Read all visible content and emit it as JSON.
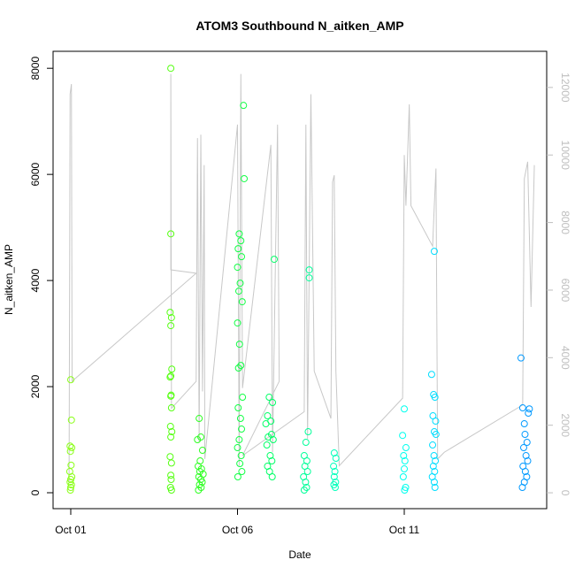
{
  "chart_data": {
    "type": "scatter",
    "title": "ATOM3 Southbound N_aitken_AMP",
    "x_label": "Date",
    "y_label": "N_aitken_AMP",
    "xlim": [
      0.47,
      15.27
    ],
    "xticks": [
      {
        "value": 1,
        "label": "Oct 01"
      },
      {
        "value": 6,
        "label": "Oct 06"
      },
      {
        "value": 11,
        "label": "Oct 11"
      }
    ],
    "ylim": [
      -300,
      8320
    ],
    "yticks": [
      0,
      2000,
      4000,
      6000,
      8000
    ],
    "y2lim": [
      -470,
      13070
    ],
    "y2ticks": [
      0,
      2000,
      4000,
      6000,
      8000,
      10000,
      12000
    ],
    "y2_color": "#bebebe",
    "series": [
      {
        "type": "line",
        "axis": "y2",
        "color": "#c8c8c8",
        "x": [
          0.95,
          0.98,
          1.02,
          1.04,
          4.76,
          4.0,
          4.0,
          4.02,
          4.76,
          4.8,
          4.85,
          4.9,
          4.95,
          5.0,
          5.02,
          6.0,
          6.05,
          6.1,
          6.15,
          7.0,
          7.05,
          7.2,
          7.25,
          6.15,
          8.0,
          8.05,
          8.1,
          8.2,
          8.3,
          8.8,
          8.85,
          8.9,
          8.95,
          9.05,
          10.95,
          11.0,
          11.05,
          11.15,
          11.2,
          11.85,
          11.9,
          11.95,
          12.0,
          12.2,
          14.55,
          14.6,
          14.7,
          14.8,
          14.9
        ],
        "values": [
          300,
          11800,
          12100,
          3300,
          6500,
          6600,
          12400,
          2500,
          3300,
          10500,
          1500,
          10600,
          3000,
          9700,
          1000,
          10900,
          800,
          12400,
          3100,
          10300,
          1200,
          10900,
          3300,
          1100,
          2400,
          10900,
          1600,
          11800,
          3600,
          2200,
          9200,
          9400,
          3600,
          800,
          2800,
          10000,
          8500,
          11500,
          8500,
          7300,
          8500,
          9600,
          1000,
          1200,
          2600,
          9300,
          9800,
          5500,
          9700
        ]
      },
      {
        "color": "#8cff1a",
        "x": [
          1.0,
          1.02,
          0.98,
          1.03,
          0.99,
          1.01,
          0.97,
          1.03,
          1.0,
          0.98,
          1.02,
          1.0,
          0.99
        ],
        "values": [
          2130,
          1370,
          880,
          850,
          780,
          520,
          400,
          300,
          250,
          200,
          150,
          100,
          50
        ]
      },
      {
        "color": "#55ff11",
        "x": [
          4.0,
          4.0,
          3.98,
          4.02,
          4.0,
          4.03,
          4.0,
          3.98,
          4.01,
          4.0,
          4.02,
          3.99,
          4.03,
          4.0,
          3.98,
          4.02,
          4.0,
          4.01,
          3.99,
          4.02
        ],
        "values": [
          8000,
          4880,
          3400,
          3300,
          3150,
          2330,
          2200,
          2180,
          1840,
          1820,
          1600,
          1250,
          1150,
          1050,
          680,
          560,
          330,
          250,
          100,
          50
        ]
      },
      {
        "color": "#2eff22",
        "x": [
          4.85,
          4.9,
          4.8,
          4.95,
          4.88,
          4.82,
          4.92,
          4.87,
          4.97,
          4.84,
          4.9,
          4.94,
          4.86,
          4.91,
          4.83
        ],
        "values": [
          1400,
          1050,
          1000,
          800,
          600,
          500,
          450,
          400,
          350,
          300,
          250,
          200,
          150,
          100,
          50
        ]
      },
      {
        "color": "#11ff44",
        "x": [
          6.18,
          6.2,
          6.05,
          6.1,
          6.02,
          6.12,
          6.0,
          6.08,
          6.04,
          6.14,
          6.0,
          6.06,
          6.1,
          6.03,
          6.15,
          6.02,
          6.09,
          6.12,
          6.05,
          6.0,
          6.11,
          6.07,
          6.13,
          6.01
        ],
        "values": [
          7300,
          5920,
          4880,
          4750,
          4600,
          4450,
          4250,
          3950,
          3800,
          3600,
          3200,
          2800,
          2400,
          2350,
          1800,
          1600,
          1400,
          1200,
          1000,
          850,
          700,
          550,
          400,
          300
        ]
      },
      {
        "color": "#00ff66",
        "x": [
          7.1,
          6.95,
          7.05,
          6.9,
          7.0,
          6.85,
          7.02,
          6.92,
          7.07,
          6.88,
          6.98,
          7.03,
          6.9,
          6.96,
          7.04
        ],
        "values": [
          4400,
          1800,
          1700,
          1450,
          1350,
          1300,
          1100,
          1050,
          1000,
          900,
          700,
          600,
          500,
          400,
          300
        ]
      },
      {
        "color": "#00ff99",
        "x": [
          8.15,
          8.15,
          8.12,
          8.05,
          8.0,
          8.08,
          8.02,
          8.1,
          7.98,
          8.04,
          8.07,
          8.0
        ],
        "values": [
          4200,
          4050,
          1150,
          950,
          700,
          600,
          500,
          400,
          300,
          200,
          100,
          50
        ]
      },
      {
        "color": "#00ffbb",
        "x": [
          8.9,
          8.95,
          8.88,
          8.92,
          8.9,
          8.94,
          8.89,
          8.93
        ],
        "values": [
          750,
          650,
          500,
          400,
          300,
          200,
          150,
          100
        ]
      },
      {
        "color": "#00ffee",
        "x": [
          11.0,
          10.95,
          11.05,
          10.98,
          11.02,
          11.0,
          10.97,
          11.04,
          11.01
        ],
        "values": [
          1580,
          1080,
          850,
          700,
          600,
          450,
          300,
          100,
          50
        ]
      },
      {
        "color": "#00ddff",
        "x": [
          11.9,
          11.82,
          11.88,
          11.92,
          11.86,
          11.94,
          11.9,
          11.95,
          11.85,
          11.89,
          11.93,
          11.87,
          11.91,
          11.84,
          11.9,
          11.92
        ],
        "values": [
          4550,
          2230,
          1850,
          1800,
          1450,
          1350,
          1150,
          1100,
          900,
          700,
          600,
          500,
          400,
          300,
          200,
          100
        ]
      },
      {
        "color": "#0099ff",
        "x": [
          14.5,
          14.55,
          14.75,
          14.72,
          14.6,
          14.62,
          14.68,
          14.58,
          14.65,
          14.7,
          14.56,
          14.63,
          14.67,
          14.6,
          14.54
        ],
        "values": [
          2540,
          1600,
          1580,
          1500,
          1300,
          1100,
          950,
          850,
          700,
          600,
          500,
          400,
          300,
          200,
          100
        ]
      }
    ]
  }
}
